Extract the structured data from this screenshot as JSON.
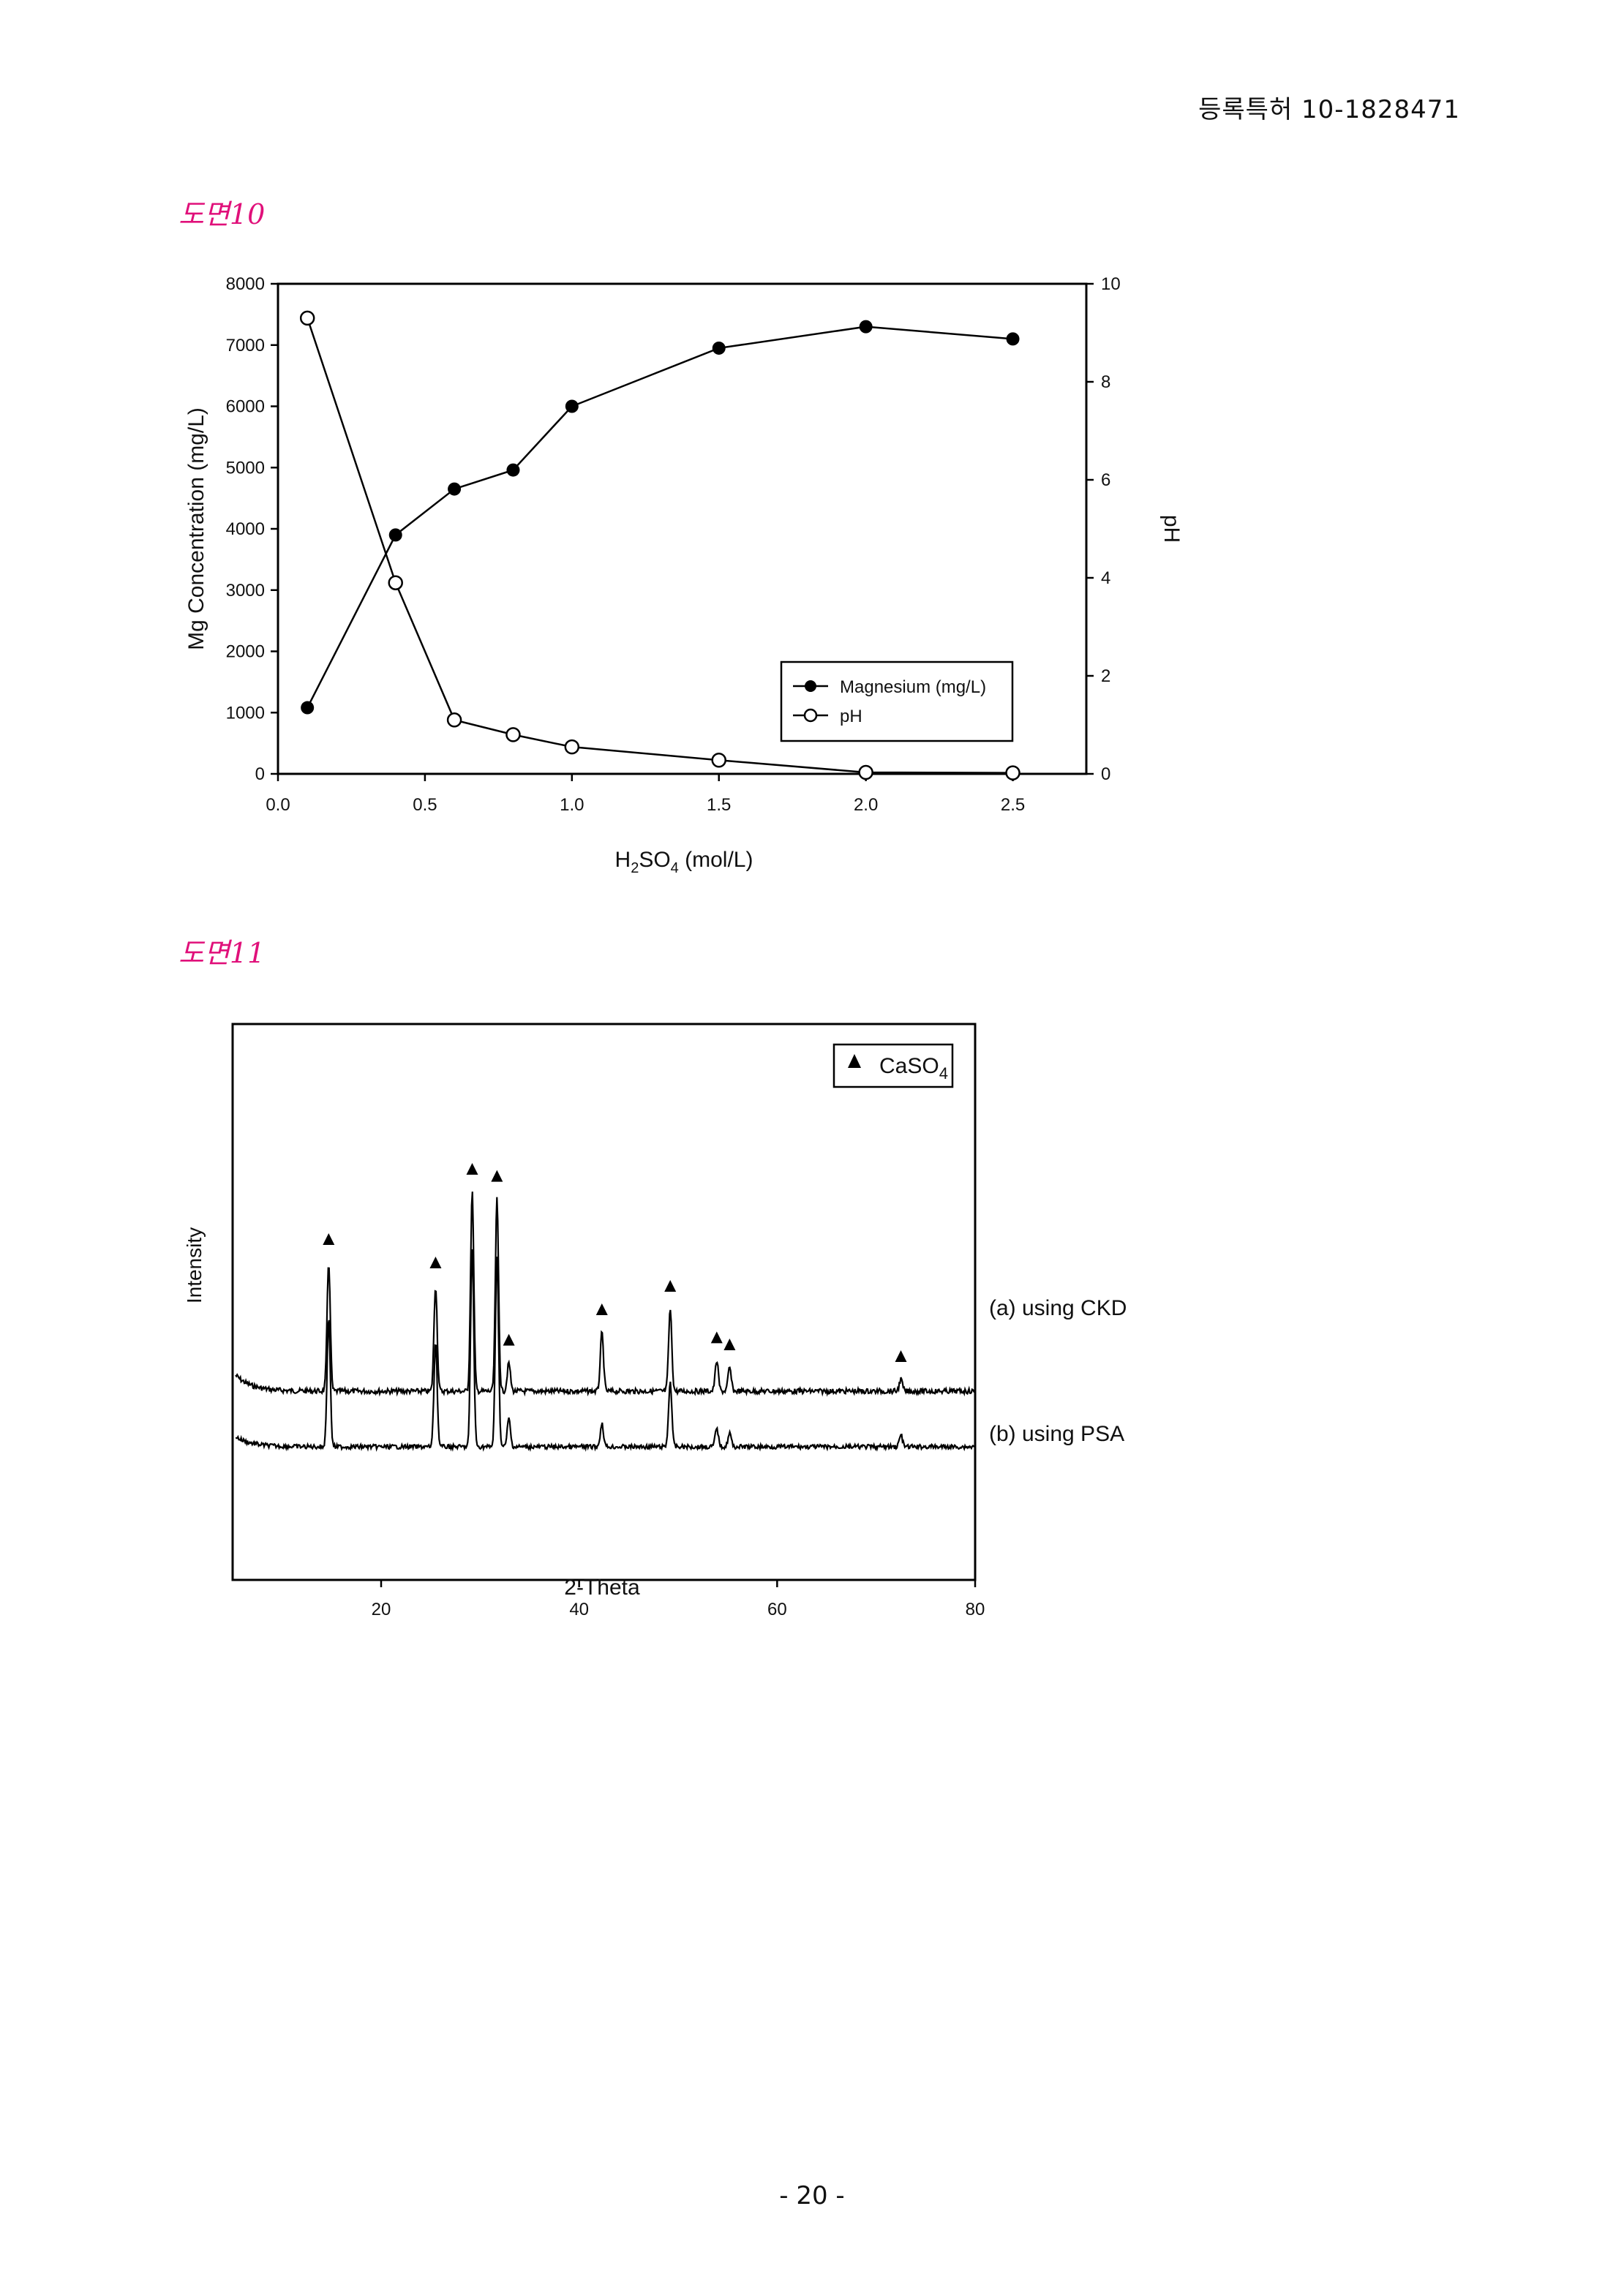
{
  "header": {
    "patent_number": "등록특허 10-1828471"
  },
  "figures": [
    {
      "label": "도면10"
    },
    {
      "label": "도면11"
    }
  ],
  "footer": {
    "page": "- 20 -"
  },
  "chart_data": [
    {
      "type": "line",
      "xlabel": "H2SO4 (mol/L)",
      "xlabel_parts": {
        "base": "H",
        "sub1": "2",
        "mid": "SO",
        "sub2": "4",
        "tail": " (mol/L)"
      },
      "ylabel": "Mg Concentration (mg/L)",
      "y2label": "pH",
      "xlim": [
        0,
        2.75
      ],
      "ylim": [
        0,
        8000
      ],
      "y2lim": [
        0,
        10
      ],
      "xticks": [
        "0.0",
        "0.5",
        "1.0",
        "1.5",
        "2.0",
        "2.5"
      ],
      "yticks": [
        "0",
        "1000",
        "2000",
        "3000",
        "4000",
        "5000",
        "6000",
        "7000",
        "8000"
      ],
      "y2ticks": [
        "0",
        "2",
        "4",
        "6",
        "8",
        "10"
      ],
      "legend_position": "bottom-right",
      "series": [
        {
          "name": "Magnesium (mg/L)",
          "axis": "left",
          "marker": "filled-circle",
          "x": [
            0.1,
            0.4,
            0.6,
            0.8,
            1.0,
            1.5,
            2.0,
            2.5
          ],
          "y": [
            1080,
            3900,
            4650,
            4960,
            6000,
            6950,
            7300,
            7100
          ]
        },
        {
          "name": "pH",
          "axis": "right",
          "marker": "open-circle",
          "x": [
            0.1,
            0.4,
            0.6,
            0.8,
            1.0,
            1.5,
            2.0,
            2.5
          ],
          "y": [
            9.3,
            3.9,
            1.1,
            0.8,
            0.55,
            0.28,
            0.03,
            0.02
          ]
        }
      ]
    },
    {
      "type": "line",
      "xlabel": "2-Theta",
      "ylabel": "Intensity",
      "xlim": [
        5,
        80
      ],
      "xticks": [
        "20",
        "40",
        "60",
        "80"
      ],
      "legend": {
        "marker": "triangle",
        "label_base": "CaSO",
        "label_sub": "4"
      },
      "traces": [
        {
          "name": "(a) using CKD"
        },
        {
          "name": "(b) using PSA"
        }
      ],
      "peaks_2theta": [
        14.7,
        25.5,
        29.2,
        31.7,
        32.9,
        42.3,
        49.2,
        53.9,
        55.2,
        72.5
      ],
      "peak_heights_a": [
        0.55,
        0.45,
        0.85,
        0.82,
        0.12,
        0.25,
        0.35,
        0.13,
        0.1,
        0.05
      ],
      "peak_heights_b": [
        0.55,
        0.45,
        0.85,
        0.82,
        0.12,
        0.1,
        0.28,
        0.08,
        0.06,
        0.05
      ]
    }
  ]
}
